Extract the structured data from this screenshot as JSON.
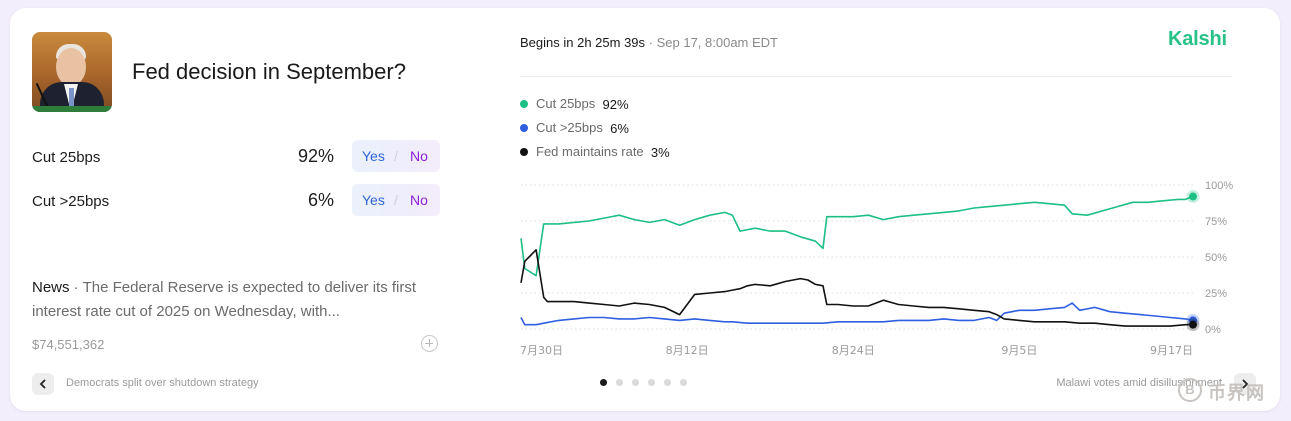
{
  "market": {
    "title": "Fed decision in September?",
    "outcomes": [
      {
        "label": "Cut 25bps",
        "percent": "92%",
        "yes": "Yes",
        "no": "No"
      },
      {
        "label": "Cut >25bps",
        "percent": "6%",
        "yes": "Yes",
        "no": "No"
      }
    ],
    "news": {
      "label": "News",
      "separator": " · ",
      "text": "The Federal Reserve is expected to deliver its first interest rate cut of 2025 on Wednesday, with..."
    },
    "volume": "$74,551,362"
  },
  "header": {
    "begins": "Begins in 2h 25m 39s",
    "separator": " · ",
    "datetime": "Sep 17, 8:00am EDT",
    "brand": "Kalshi"
  },
  "legend": [
    {
      "name": "Cut 25bps",
      "value": "92%",
      "color": "#1dbf84"
    },
    {
      "name": "Cut >25bps",
      "value": "6%",
      "color": "#2f5fe0"
    },
    {
      "name": "Fed maintains rate",
      "value": "3%",
      "color": "#111111"
    }
  ],
  "footer": {
    "prev_story": "Democrats split over shutdown strategy",
    "next_story": "Malawi votes amid disillusionment",
    "carousel_count": 6,
    "carousel_active": 0
  },
  "watermark": {
    "symbol": "B",
    "text": "币界网"
  },
  "icons": {
    "prev": "chevron-left-icon",
    "next": "chevron-right-icon",
    "add": "plus-circle-icon"
  },
  "chart_data": {
    "type": "line",
    "x_labels": [
      "7月30日",
      "8月12日",
      "8月24日",
      "9月5日",
      "9月17日"
    ],
    "y_ticks": [
      "100%",
      "75%",
      "50%",
      "25%",
      "0%"
    ],
    "ylim": [
      0,
      100
    ],
    "grid": true,
    "series": [
      {
        "name": "Cut 25bps",
        "color": "#1dbf84",
        "points": [
          [
            0,
            63
          ],
          [
            0.5,
            42
          ],
          [
            2,
            37
          ],
          [
            3,
            73
          ],
          [
            5,
            73
          ],
          [
            7,
            74
          ],
          [
            9,
            75
          ],
          [
            11,
            77
          ],
          [
            13,
            79
          ],
          [
            15,
            76
          ],
          [
            17,
            74
          ],
          [
            19,
            76
          ],
          [
            21,
            72
          ],
          [
            23,
            76
          ],
          [
            25,
            79
          ],
          [
            27,
            81
          ],
          [
            28,
            79
          ],
          [
            29,
            68
          ],
          [
            31,
            70
          ],
          [
            33,
            68
          ],
          [
            35,
            68
          ],
          [
            37,
            64
          ],
          [
            39,
            61
          ],
          [
            40,
            56
          ],
          [
            40.5,
            78
          ],
          [
            42,
            78
          ],
          [
            44,
            78
          ],
          [
            46,
            79
          ],
          [
            48,
            76
          ],
          [
            50,
            78
          ],
          [
            52,
            79
          ],
          [
            54,
            80
          ],
          [
            56,
            81
          ],
          [
            58,
            82
          ],
          [
            60,
            84
          ],
          [
            62,
            85
          ],
          [
            64,
            86
          ],
          [
            66,
            87
          ],
          [
            68,
            88
          ],
          [
            70,
            87
          ],
          [
            72,
            86
          ],
          [
            73,
            80
          ],
          [
            75,
            79
          ],
          [
            77,
            82
          ],
          [
            79,
            85
          ],
          [
            81,
            88
          ],
          [
            83,
            88
          ],
          [
            85,
            89
          ],
          [
            87,
            90
          ],
          [
            88,
            90
          ],
          [
            89,
            92
          ]
        ]
      },
      {
        "name": "Cut >25bps",
        "color": "#2f5fe0",
        "points": [
          [
            0,
            8
          ],
          [
            0.5,
            3
          ],
          [
            2,
            3
          ],
          [
            3,
            4
          ],
          [
            5,
            6
          ],
          [
            7,
            7
          ],
          [
            9,
            8
          ],
          [
            11,
            8
          ],
          [
            13,
            7
          ],
          [
            15,
            7
          ],
          [
            17,
            8
          ],
          [
            19,
            7
          ],
          [
            21,
            6
          ],
          [
            23,
            7
          ],
          [
            25,
            6
          ],
          [
            27,
            5
          ],
          [
            28,
            5
          ],
          [
            30,
            4
          ],
          [
            32,
            4
          ],
          [
            35,
            4
          ],
          [
            38,
            4
          ],
          [
            40,
            4
          ],
          [
            42,
            5
          ],
          [
            44,
            5
          ],
          [
            46,
            5
          ],
          [
            48,
            5
          ],
          [
            50,
            6
          ],
          [
            52,
            6
          ],
          [
            54,
            6
          ],
          [
            56,
            7
          ],
          [
            58,
            6
          ],
          [
            60,
            6
          ],
          [
            62,
            8
          ],
          [
            63,
            6
          ],
          [
            64,
            11
          ],
          [
            66,
            13
          ],
          [
            68,
            13
          ],
          [
            70,
            14
          ],
          [
            72,
            15
          ],
          [
            73,
            18
          ],
          [
            74,
            13
          ],
          [
            76,
            15
          ],
          [
            78,
            12
          ],
          [
            80,
            11
          ],
          [
            82,
            10
          ],
          [
            84,
            9
          ],
          [
            86,
            8
          ],
          [
            88,
            7
          ],
          [
            89,
            6
          ]
        ]
      },
      {
        "name": "Fed maintains rate",
        "color": "#111111",
        "points": [
          [
            0,
            32
          ],
          [
            0.5,
            47
          ],
          [
            2,
            55
          ],
          [
            3,
            22
          ],
          [
            3.5,
            19
          ],
          [
            5,
            19
          ],
          [
            7,
            19
          ],
          [
            9,
            18
          ],
          [
            11,
            17
          ],
          [
            13,
            16
          ],
          [
            15,
            18
          ],
          [
            17,
            17
          ],
          [
            19,
            15
          ],
          [
            21,
            10
          ],
          [
            23,
            24
          ],
          [
            25,
            25
          ],
          [
            27,
            26
          ],
          [
            28,
            27
          ],
          [
            29,
            28
          ],
          [
            30,
            30
          ],
          [
            31,
            31
          ],
          [
            33,
            30
          ],
          [
            35,
            33
          ],
          [
            37,
            35
          ],
          [
            38,
            34
          ],
          [
            39,
            31
          ],
          [
            40,
            30
          ],
          [
            40.5,
            17
          ],
          [
            42,
            17
          ],
          [
            44,
            16
          ],
          [
            46,
            16
          ],
          [
            48,
            20
          ],
          [
            50,
            17
          ],
          [
            52,
            16
          ],
          [
            54,
            15
          ],
          [
            56,
            15
          ],
          [
            58,
            14
          ],
          [
            60,
            13
          ],
          [
            62,
            12
          ],
          [
            63,
            10
          ],
          [
            64,
            7
          ],
          [
            66,
            6
          ],
          [
            68,
            5
          ],
          [
            70,
            5
          ],
          [
            72,
            5
          ],
          [
            74,
            4
          ],
          [
            76,
            4
          ],
          [
            78,
            3
          ],
          [
            80,
            2
          ],
          [
            82,
            2
          ],
          [
            84,
            2
          ],
          [
            86,
            2
          ],
          [
            88,
            3
          ],
          [
            89,
            3
          ]
        ]
      }
    ]
  }
}
